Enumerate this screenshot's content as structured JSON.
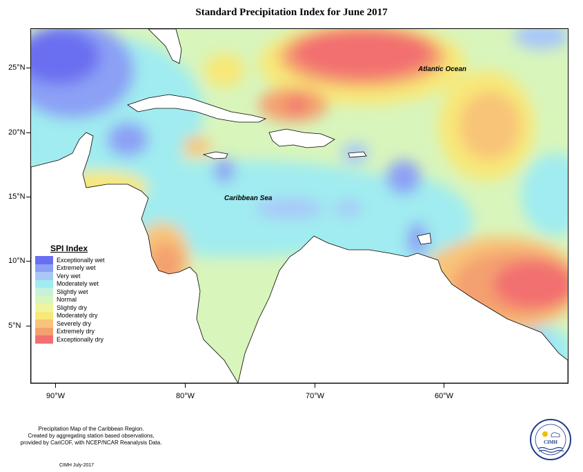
{
  "title": "Standard Precipitation Index for June 2017",
  "axes": {
    "latitude_labels": [
      "25°N",
      "20°N",
      "15°N",
      "10°N",
      "5°N"
    ],
    "longitude_labels": [
      "90°W",
      "80°W",
      "70°W",
      "60°W"
    ]
  },
  "place_labels": {
    "ocean": "Atlantic Ocean",
    "sea": "Caribbean Sea"
  },
  "legend": {
    "title": "SPI Index",
    "items": [
      {
        "label": "Exceptionally wet",
        "color": "#6a6ef0"
      },
      {
        "label": "Extremely wet",
        "color": "#8ca0f5"
      },
      {
        "label": "Very wet",
        "color": "#a8c8f8"
      },
      {
        "label": "Moderately wet",
        "color": "#a0ecf0"
      },
      {
        "label": "Slightly wet",
        "color": "#c6f2dc"
      },
      {
        "label": "Normal",
        "color": "#d8f5bc"
      },
      {
        "label": "Slightly dry",
        "color": "#eef5a0"
      },
      {
        "label": "Moderately dry",
        "color": "#f8e878"
      },
      {
        "label": "Severely dry",
        "color": "#f8c478"
      },
      {
        "label": "Extremely dry",
        "color": "#f4a070"
      },
      {
        "label": "Exceptionally dry",
        "color": "#f27070"
      }
    ]
  },
  "footer": {
    "line1": "Precipitation Map of the Caribbean Region.",
    "line2": "Created by aggregating station based observations,",
    "line3": "provided by CariCOF, with NCEP/NCAR Reanalysis Data.",
    "date": "CIMH July-2017"
  },
  "logo": {
    "text": "CIMH"
  }
}
